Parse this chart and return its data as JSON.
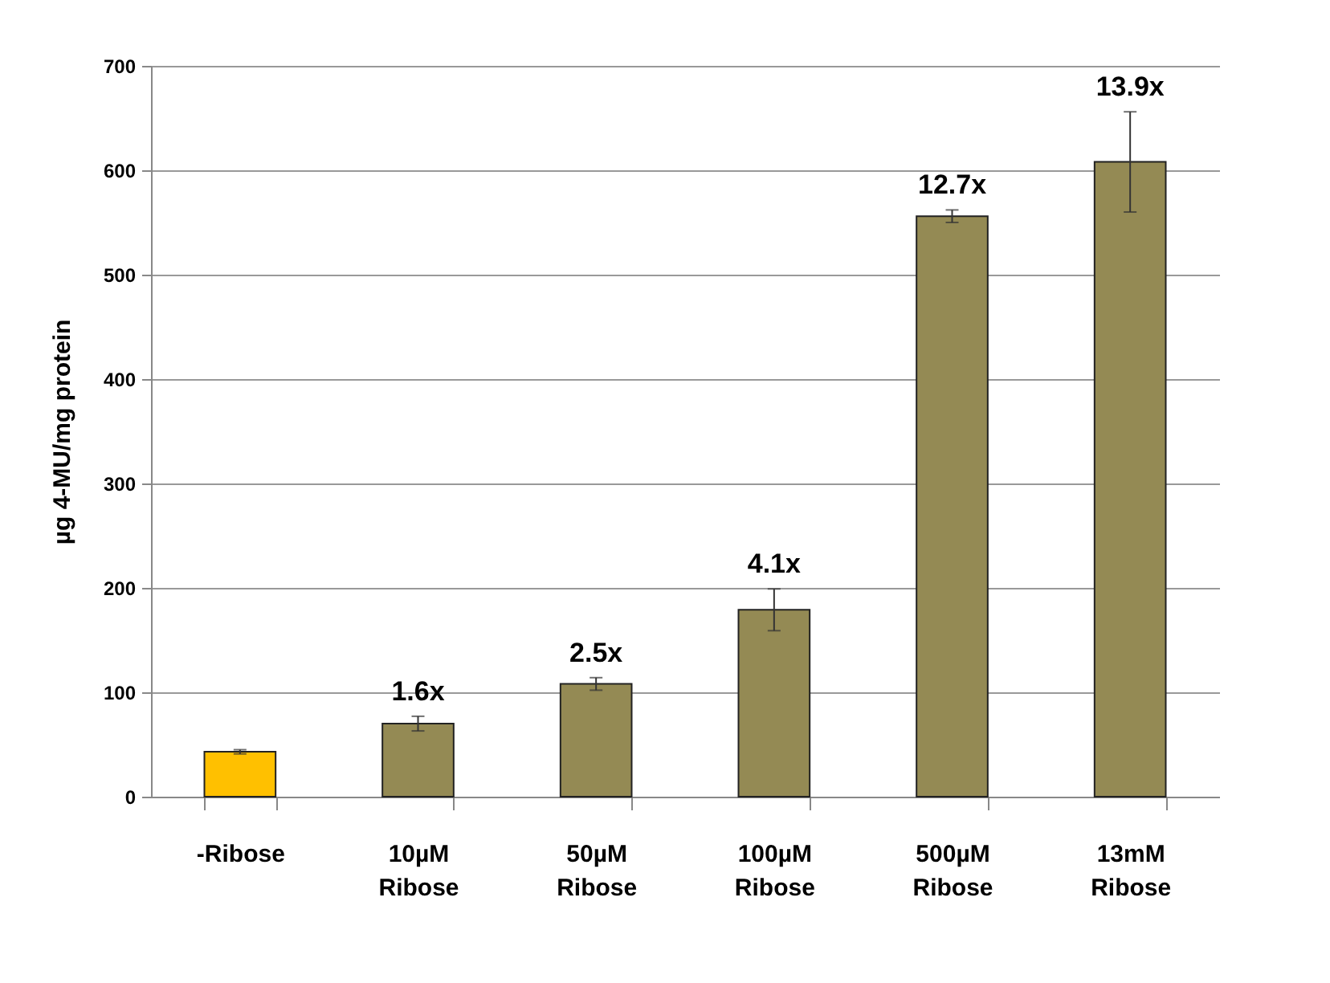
{
  "chart_data": {
    "type": "bar",
    "ylabel": "µg 4-MU/mg protein",
    "categories": [
      "-Ribose",
      "10µM Ribose",
      "50µM Ribose",
      "100µM Ribose",
      "500µM Ribose",
      "13mM Ribose"
    ],
    "values": [
      43,
      70,
      108,
      179,
      556,
      608
    ],
    "colors": [
      "#ffc000",
      "#948a54",
      "#948a54",
      "#948a54",
      "#948a54",
      "#948a54"
    ],
    "errors": [
      2,
      7,
      6,
      20,
      6,
      48
    ],
    "annotations": [
      {
        "text": "1.6x",
        "x": "10µM Ribose",
        "y": 77
      },
      {
        "text": "2.5x",
        "x": "50µM Ribose",
        "y": 114
      },
      {
        "text": "4.1x",
        "x": "100µM Ribose",
        "y": 199
      },
      {
        "text": "12.7x",
        "x": "500µM Ribose",
        "y": 562
      },
      {
        "text": "13.9x",
        "x": "13mM Ribose",
        "y": 656
      }
    ],
    "ylim": [
      0,
      700
    ],
    "yticks": [
      0,
      100,
      200,
      300,
      400,
      500,
      600,
      700
    ],
    "grid": "y"
  }
}
